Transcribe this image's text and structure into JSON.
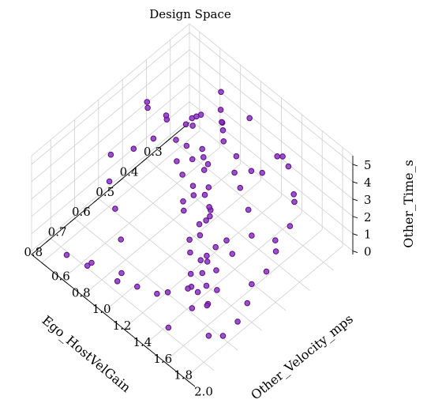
{
  "chart_data": {
    "type": "scatter3d",
    "title": "Design Space",
    "xlabel": "Ego_HostVelGain",
    "ylabel": "Other_Velocity_mps",
    "zlabel": "Other_Time_s",
    "xlim": [
      0.22,
      0.88
    ],
    "ylim": [
      0.5,
      2.1
    ],
    "zlim": [
      -0.2,
      5.5
    ],
    "xticks": [
      "0.3",
      "0.4",
      "0.5",
      "0.6",
      "0.7",
      "0.8"
    ],
    "yticks": [
      "0.6",
      "0.8",
      "1.0",
      "1.2",
      "1.4",
      "1.6",
      "1.8",
      "2.0"
    ],
    "zticks": [
      "0",
      "1",
      "2",
      "3",
      "4",
      "5"
    ],
    "grid": true,
    "marker_color": "#8a2fc4",
    "points": [
      [
        0.26,
        1.2,
        0.8
      ],
      [
        0.31,
        1.3,
        4.9
      ],
      [
        0.28,
        0.95,
        4.4
      ],
      [
        0.36,
        1.15,
        4.5
      ],
      [
        0.4,
        1.25,
        5.0
      ],
      [
        0.44,
        1.35,
        5.3
      ],
      [
        0.48,
        1.55,
        4.9
      ],
      [
        0.52,
        1.7,
        5.2
      ],
      [
        0.55,
        1.85,
        5.0
      ],
      [
        0.6,
        2.0,
        4.8
      ],
      [
        0.62,
        1.8,
        3.8
      ],
      [
        0.66,
        1.95,
        4.2
      ],
      [
        0.7,
        1.8,
        3.5
      ],
      [
        0.74,
        1.9,
        2.0
      ],
      [
        0.78,
        2.0,
        1.1
      ],
      [
        0.82,
        1.7,
        0.6
      ],
      [
        0.38,
        0.9,
        3.8
      ],
      [
        0.42,
        1.0,
        4.3
      ],
      [
        0.46,
        1.2,
        3.9
      ],
      [
        0.5,
        1.3,
        4.1
      ],
      [
        0.54,
        1.4,
        3.6
      ],
      [
        0.58,
        1.55,
        3.9
      ],
      [
        0.62,
        1.6,
        4.0
      ],
      [
        0.66,
        1.7,
        2.9
      ],
      [
        0.7,
        1.75,
        2.6
      ],
      [
        0.74,
        1.8,
        2.2
      ],
      [
        0.3,
        0.8,
        2.6
      ],
      [
        0.34,
        0.85,
        3.2
      ],
      [
        0.38,
        1.0,
        2.5
      ],
      [
        0.42,
        1.15,
        2.8
      ],
      [
        0.46,
        1.25,
        2.4
      ],
      [
        0.5,
        1.35,
        2.2
      ],
      [
        0.54,
        1.45,
        2.6
      ],
      [
        0.58,
        1.6,
        2.0
      ],
      [
        0.62,
        1.7,
        1.6
      ],
      [
        0.66,
        1.8,
        1.4
      ],
      [
        0.32,
        0.7,
        1.8
      ],
      [
        0.36,
        0.8,
        1.5
      ],
      [
        0.4,
        0.95,
        1.9
      ],
      [
        0.44,
        1.05,
        1.3
      ],
      [
        0.48,
        1.15,
        1.7
      ],
      [
        0.52,
        1.3,
        1.2
      ],
      [
        0.56,
        1.4,
        1.5
      ],
      [
        0.6,
        1.5,
        1.0
      ],
      [
        0.64,
        1.65,
        0.7
      ],
      [
        0.68,
        1.75,
        0.5
      ],
      [
        0.34,
        0.65,
        0.9
      ],
      [
        0.38,
        0.75,
        0.6
      ],
      [
        0.42,
        0.9,
        1.0
      ],
      [
        0.46,
        1.0,
        0.4
      ],
      [
        0.5,
        1.1,
        0.8
      ],
      [
        0.54,
        1.25,
        0.3
      ],
      [
        0.58,
        1.35,
        0.5
      ],
      [
        0.62,
        1.45,
        0.2
      ],
      [
        0.66,
        1.55,
        0.4
      ],
      [
        0.7,
        1.65,
        0.1
      ],
      [
        0.74,
        1.4,
        0.2
      ],
      [
        0.78,
        1.3,
        0.6
      ],
      [
        0.3,
        1.6,
        4.0
      ],
      [
        0.34,
        1.75,
        4.6
      ],
      [
        0.28,
        1.5,
        3.3
      ],
      [
        0.36,
        1.85,
        3.7
      ],
      [
        0.4,
        1.95,
        4.2
      ],
      [
        0.44,
        2.0,
        3.5
      ],
      [
        0.48,
        1.95,
        2.9
      ],
      [
        0.52,
        2.05,
        3.2
      ],
      [
        0.56,
        2.05,
        2.5
      ],
      [
        0.6,
        2.0,
        2.0
      ],
      [
        0.64,
        2.05,
        1.6
      ],
      [
        0.68,
        2.05,
        1.0
      ],
      [
        0.72,
        2.0,
        0.4
      ],
      [
        0.76,
        1.1,
        0.2
      ],
      [
        0.8,
        0.9,
        0.3
      ],
      [
        0.84,
        0.75,
        0.5
      ],
      [
        0.72,
        1.0,
        1.2
      ],
      [
        0.68,
        0.85,
        1.8
      ],
      [
        0.64,
        0.7,
        2.2
      ],
      [
        0.6,
        0.62,
        2.9
      ],
      [
        0.56,
        0.75,
        3.4
      ],
      [
        0.52,
        0.85,
        4.0
      ],
      [
        0.48,
        0.7,
        4.6
      ],
      [
        0.44,
        0.6,
        4.0
      ],
      [
        0.4,
        0.7,
        3.0
      ],
      [
        0.36,
        0.6,
        2.3
      ],
      [
        0.32,
        1.05,
        3.6
      ],
      [
        0.3,
        1.4,
        2.1
      ],
      [
        0.26,
        0.9,
        2.9
      ],
      [
        0.28,
        1.1,
        1.4
      ],
      [
        0.82,
        1.2,
        0.9
      ],
      [
        0.86,
        1.0,
        1.3
      ],
      [
        0.78,
        1.6,
        1.7
      ],
      [
        0.76,
        1.75,
        2.4
      ]
    ]
  }
}
